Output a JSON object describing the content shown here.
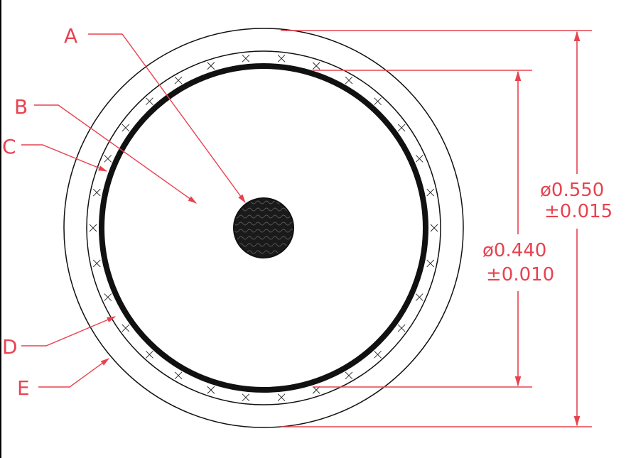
{
  "diagram": {
    "callouts": [
      "A",
      "B",
      "C",
      "D",
      "E"
    ],
    "dimensions": {
      "outer": {
        "diameter": "ø0.550",
        "tolerance": "±0.015"
      },
      "inner": {
        "diameter": "ø0.440",
        "tolerance": "±0.010"
      }
    },
    "colors": {
      "annotation": "#e8424f",
      "line": "#111111",
      "border": "#000000"
    }
  }
}
